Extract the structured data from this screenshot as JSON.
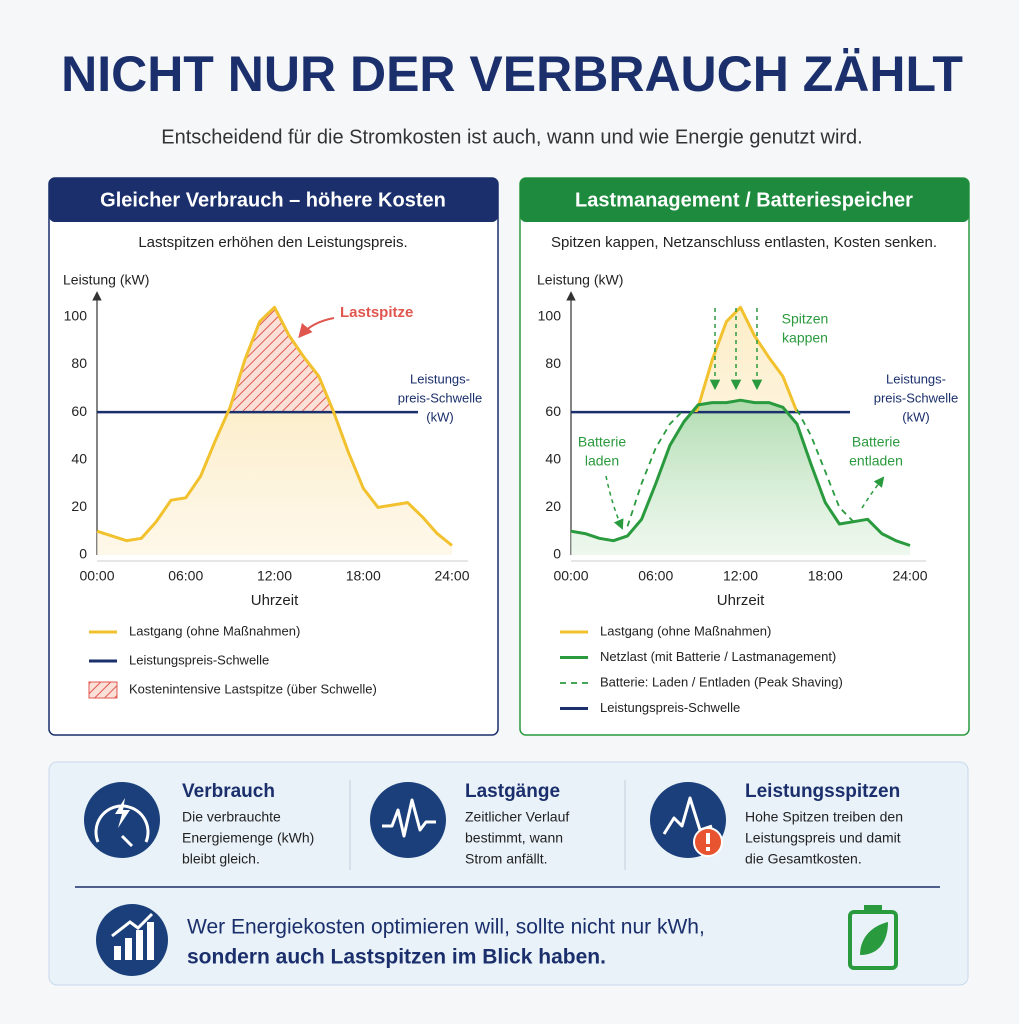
{
  "header": {
    "title": "NICHT NUR DER VERBRAUCH ZÄHLT",
    "subtitle": "Entscheidend für die Stromkosten ist auch, wann und wie Energie genutzt wird."
  },
  "chart_data": [
    {
      "type": "line",
      "title": "Gleicher Verbrauch – höhere Kosten",
      "subtitle": "Lastspitzen erhöhen den Leistungspreis.",
      "y_label": "Leistung (kW)",
      "x_label": "Uhrzeit",
      "x": [
        0,
        1,
        2,
        3,
        4,
        5,
        6,
        7,
        8,
        9,
        10,
        11,
        12,
        13,
        14,
        15,
        16,
        17,
        18,
        19,
        20,
        21,
        22,
        23,
        24
      ],
      "xlim": [
        0,
        24
      ],
      "xticks": [
        {
          "value": 0,
          "label": "00:00"
        },
        {
          "value": 6,
          "label": "06:00"
        },
        {
          "value": 12,
          "label": "12:00"
        },
        {
          "value": 18,
          "label": "18:00"
        },
        {
          "value": 24,
          "label": "24:00"
        }
      ],
      "ylim": [
        0,
        110
      ],
      "yticks": [
        0,
        20,
        40,
        60,
        80,
        100
      ],
      "series": [
        {
          "name": "Lastgang (ohne Maßnahmen)",
          "color": "#f2c12e",
          "values": [
            10,
            8,
            6,
            7,
            14,
            23,
            24,
            33,
            48,
            62,
            82,
            98,
            104,
            92,
            83,
            75,
            60,
            43,
            28,
            20,
            21,
            22,
            16,
            9,
            4
          ]
        }
      ],
      "threshold": {
        "name": "Leistungspreis-Schwelle",
        "value": 60,
        "color": "#1a2f6b"
      },
      "peak_area": {
        "name": "Kostenintensive Lastspitze (über Schwelle)",
        "color": "#e0574f"
      },
      "annotations": [
        {
          "lines": [
            "Lastspitze"
          ]
        },
        {
          "lines": [
            "Leistungs-",
            "preis-Schwelle",
            "(kW)"
          ]
        }
      ]
    },
    {
      "type": "line",
      "title": "Lastmanagement / Batteriespeicher",
      "subtitle": "Spitzen kappen, Netzanschluss entlasten, Kosten senken.",
      "y_label": "Leistung (kW)",
      "x_label": "Uhrzeit",
      "x": [
        0,
        1,
        2,
        3,
        4,
        5,
        6,
        7,
        8,
        9,
        10,
        11,
        12,
        13,
        14,
        15,
        16,
        17,
        18,
        19,
        20,
        21,
        22,
        23,
        24
      ],
      "xlim": [
        0,
        24
      ],
      "xticks": [
        {
          "value": 0,
          "label": "00:00"
        },
        {
          "value": 6,
          "label": "06:00"
        },
        {
          "value": 12,
          "label": "12:00"
        },
        {
          "value": 18,
          "label": "18:00"
        },
        {
          "value": 24,
          "label": "24:00"
        }
      ],
      "ylim": [
        0,
        110
      ],
      "yticks": [
        0,
        20,
        40,
        60,
        80,
        100
      ],
      "series": [
        {
          "name": "Lastgang (ohne Maßnahmen)",
          "color": "#f2c12e",
          "values": [
            10,
            8,
            6,
            7,
            14,
            23,
            24,
            33,
            48,
            62,
            82,
            98,
            104,
            92,
            83,
            75,
            60,
            43,
            28,
            20,
            21,
            22,
            16,
            9,
            4
          ]
        },
        {
          "name": "Netzlast (mit Batterie / Lastmanagement)",
          "color": "#2a9a3e",
          "values": [
            10,
            9,
            7,
            6,
            8,
            15,
            30,
            46,
            56,
            63,
            64,
            64,
            65,
            64,
            64,
            62,
            55,
            38,
            22,
            13,
            14,
            15,
            9,
            6,
            4
          ]
        },
        {
          "name": "Batterie: Laden / Entladen (Peak Shaving)",
          "color": "#2a9a3e",
          "dashed": true,
          "values": [
            null,
            null,
            null,
            null,
            12,
            30,
            45,
            55,
            61,
            null,
            null,
            null,
            null,
            null,
            null,
            null,
            61,
            50,
            35,
            20,
            14,
            null,
            null,
            null,
            null
          ]
        }
      ],
      "threshold": {
        "name": "Leistungspreis-Schwelle",
        "value": 60,
        "color": "#1a2f6b"
      },
      "annotations": [
        {
          "lines": [
            "Leistungs-",
            "preis-Schwelle",
            "(kW)"
          ]
        },
        {
          "lines": [
            "Spitzen",
            "kappen"
          ]
        },
        {
          "lines": [
            "Batterie",
            "laden"
          ]
        },
        {
          "lines": [
            "Batterie",
            "entladen"
          ]
        }
      ]
    }
  ],
  "info": {
    "items": [
      {
        "title": "Verbrauch",
        "lines": [
          "Die verbrauchte",
          "Energiemenge (kWh)",
          "bleibt gleich."
        ]
      },
      {
        "title": "Lastgänge",
        "lines": [
          "Zeitlicher Verlauf",
          "bestimmt, wann",
          "Strom anfällt."
        ]
      },
      {
        "title": "Leistungsspitzen",
        "lines": [
          "Hohe Spitzen treiben den",
          "Leistungspreis und damit",
          "die Gesamtkosten."
        ]
      }
    ],
    "message": [
      "Wer Energiekosten optimieren will, sollte nicht nur kWh,",
      "sondern auch Lastspitzen im Blick haben."
    ]
  }
}
